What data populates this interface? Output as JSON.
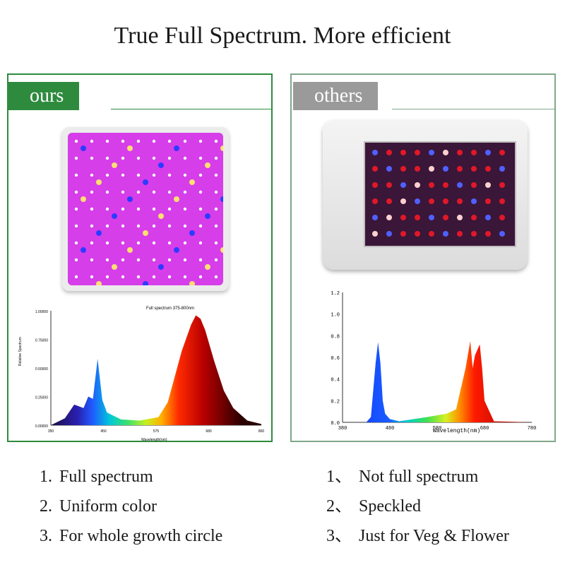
{
  "title": "True Full Spectrum. More efficient",
  "left": {
    "tag": "ours",
    "chart_title": "Full spectrum 375-800nm",
    "ylabel": "Relative Spectrum",
    "xlabel": "Wavelength(nm)",
    "yticks": [
      "0.00000",
      "0.25000",
      "0.50000",
      "0.75000",
      "1.00000"
    ],
    "xticks": [
      "350",
      "450",
      "575",
      "680",
      "800"
    ],
    "items": [
      {
        "num": "1.",
        "text": "Full spectrum"
      },
      {
        "num": "2.",
        "text": "Uniform color"
      },
      {
        "num": "3.",
        "text": "For whole growth circle"
      }
    ]
  },
  "right": {
    "tag": "others",
    "xlabel": "Wavelength(nm)",
    "yticks": [
      "0.0",
      "0.2",
      "0.4",
      "0.6",
      "0.8",
      "1.0",
      "1.2"
    ],
    "xticks": [
      "380",
      "480",
      "580",
      "680",
      "780"
    ],
    "items": [
      {
        "num": "1、",
        "text": "Not full spectrum"
      },
      {
        "num": "2、",
        "text": "Speckled"
      },
      {
        "num": "3、",
        "text": "Just for Veg & Flower"
      }
    ]
  },
  "colors": {
    "ours_tag": "#2e8b3e",
    "others_tag": "#9a9a9a",
    "panel_border": "#2e8b3e",
    "led_face": "#d63ee9"
  },
  "chart_data": [
    {
      "type": "area",
      "title": "Full spectrum 375-800nm",
      "xlabel": "Wavelength(nm)",
      "ylabel": "Relative Spectrum",
      "xlim": [
        350,
        800
      ],
      "ylim": [
        0,
        1.0
      ],
      "x": [
        350,
        380,
        400,
        420,
        430,
        440,
        450,
        460,
        470,
        500,
        540,
        580,
        600,
        630,
        650,
        660,
        670,
        680,
        700,
        720,
        740,
        770,
        800
      ],
      "y": [
        0,
        0.06,
        0.18,
        0.15,
        0.25,
        0.23,
        0.58,
        0.22,
        0.11,
        0.05,
        0.04,
        0.07,
        0.2,
        0.65,
        0.88,
        0.96,
        0.93,
        0.83,
        0.55,
        0.3,
        0.15,
        0.04,
        0.01
      ]
    },
    {
      "type": "area",
      "xlabel": "Wavelength(nm)",
      "xlim": [
        380,
        780
      ],
      "ylim": [
        0,
        1.2
      ],
      "x": [
        380,
        430,
        440,
        450,
        455,
        460,
        465,
        470,
        480,
        500,
        560,
        600,
        620,
        640,
        650,
        655,
        660,
        670,
        675,
        680,
        700,
        780
      ],
      "y": [
        0,
        0.0,
        0.05,
        0.55,
        0.74,
        0.55,
        0.2,
        0.08,
        0.03,
        0.01,
        0.05,
        0.08,
        0.12,
        0.5,
        0.75,
        0.5,
        0.62,
        0.72,
        0.5,
        0.2,
        0.01,
        0
      ]
    }
  ]
}
